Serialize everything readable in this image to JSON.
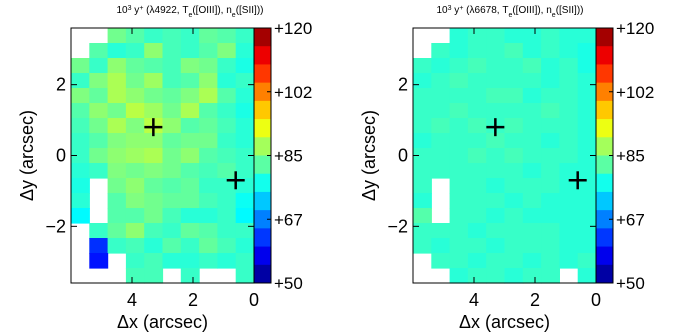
{
  "chart_data": [
    {
      "type": "heatmap",
      "title_parts": [
        "10",
        "3",
        " y",
        "+",
        " (λ4922, T",
        "e",
        "([OIII]), n",
        "e",
        "([SII]))"
      ],
      "xlabel": "Δx (arcsec)",
      "ylabel": "Δy (arcsec)",
      "xlim": [
        6,
        0
      ],
      "ylim": [
        -3.6,
        3.6
      ],
      "x_ticks": [
        "4",
        "2",
        "0"
      ],
      "y_ticks": [
        "2",
        "0",
        "−2"
      ],
      "colorbar_ticks": [
        "+120",
        "+102",
        "+85",
        "+67",
        "+50"
      ],
      "colorbar_range": [
        50,
        120
      ],
      "markers": [
        {
          "x": 3.3,
          "y": 0.8
        },
        {
          "x": 0.6,
          "y": -0.7
        }
      ],
      "grid": [
        [
          null,
          null,
          84,
          82,
          80,
          81,
          80,
          83,
          82,
          80
        ],
        [
          null,
          82,
          79,
          80,
          86,
          81,
          80,
          82,
          85,
          79
        ],
        [
          84,
          80,
          86,
          83,
          82,
          81,
          85,
          84,
          80,
          78
        ],
        [
          80,
          85,
          88,
          84,
          87,
          81,
          82,
          86,
          79,
          80
        ],
        [
          85,
          83,
          88,
          86,
          84,
          83,
          85,
          88,
          82,
          79
        ],
        [
          82,
          86,
          84,
          89,
          87,
          84,
          88,
          82,
          80,
          78
        ],
        [
          81,
          84,
          88,
          85,
          89,
          86,
          82,
          83,
          81,
          79
        ],
        [
          80,
          82,
          85,
          86,
          86,
          83,
          84,
          84,
          80,
          79
        ],
        [
          80,
          84,
          86,
          87,
          88,
          84,
          86,
          82,
          81,
          80
        ],
        [
          79,
          80,
          85,
          84,
          85,
          84,
          82,
          81,
          82,
          80
        ],
        [
          78,
          null,
          84,
          86,
          83,
          82,
          83,
          80,
          80,
          79
        ],
        [
          79,
          null,
          82,
          85,
          84,
          83,
          83,
          81,
          80,
          77
        ],
        [
          76,
          null,
          82,
          82,
          84,
          81,
          79,
          79,
          80,
          76
        ],
        [
          null,
          80,
          83,
          86,
          81,
          80,
          83,
          82,
          80,
          80
        ],
        [
          null,
          62,
          80,
          81,
          79,
          82,
          80,
          83,
          81,
          79
        ],
        [
          null,
          60,
          null,
          80,
          81,
          79,
          79,
          80,
          79,
          80
        ],
        [
          null,
          null,
          null,
          81,
          81,
          null,
          80,
          null,
          null,
          80
        ]
      ]
    },
    {
      "type": "heatmap",
      "title_parts": [
        "10",
        "3",
        " y",
        "+",
        " (λ6678, T",
        "e",
        "([OIII]), n",
        "e",
        "([SII]))"
      ],
      "xlabel": "Δx (arcsec)",
      "ylabel": "Δy (arcsec)",
      "xlim": [
        6,
        0
      ],
      "ylim": [
        -3.6,
        3.6
      ],
      "x_ticks": [
        "4",
        "2",
        "0"
      ],
      "y_ticks": [
        "2",
        "0",
        "−2"
      ],
      "colorbar_ticks": [
        "+120",
        "+102",
        "+85",
        "+67",
        "+50"
      ],
      "colorbar_range": [
        50,
        120
      ],
      "markers": [
        {
          "x": 3.3,
          "y": 0.8
        },
        {
          "x": 0.6,
          "y": -0.7
        }
      ],
      "grid": [
        [
          null,
          null,
          79,
          80,
          80,
          79,
          79,
          80,
          79,
          79
        ],
        [
          null,
          80,
          79,
          80,
          80,
          81,
          79,
          80,
          79,
          78
        ],
        [
          80,
          79,
          80,
          81,
          80,
          80,
          81,
          79,
          80,
          78
        ],
        [
          79,
          80,
          81,
          80,
          80,
          80,
          80,
          79,
          80,
          79
        ],
        [
          80,
          80,
          80,
          80,
          81,
          81,
          79,
          80,
          80,
          79
        ],
        [
          80,
          80,
          81,
          80,
          80,
          80,
          80,
          81,
          80,
          79
        ],
        [
          80,
          81,
          80,
          81,
          80,
          81,
          80,
          80,
          80,
          79
        ],
        [
          79,
          80,
          80,
          80,
          81,
          80,
          80,
          79,
          80,
          79
        ],
        [
          80,
          80,
          80,
          81,
          80,
          81,
          80,
          80,
          80,
          79
        ],
        [
          80,
          80,
          80,
          80,
          80,
          80,
          79,
          80,
          79,
          79
        ],
        [
          80,
          null,
          80,
          80,
          79,
          80,
          80,
          80,
          79,
          79
        ],
        [
          79,
          null,
          80,
          80,
          80,
          79,
          80,
          79,
          79,
          79
        ],
        [
          82,
          null,
          80,
          80,
          79,
          80,
          79,
          79,
          79,
          79
        ],
        [
          80,
          80,
          80,
          79,
          80,
          80,
          80,
          80,
          79,
          79
        ],
        [
          80,
          79,
          80,
          80,
          79,
          80,
          80,
          80,
          79,
          79
        ],
        [
          null,
          80,
          80,
          79,
          80,
          80,
          79,
          80,
          79,
          80
        ],
        [
          null,
          null,
          79,
          80,
          80,
          79,
          80,
          80,
          null,
          79
        ]
      ]
    }
  ]
}
